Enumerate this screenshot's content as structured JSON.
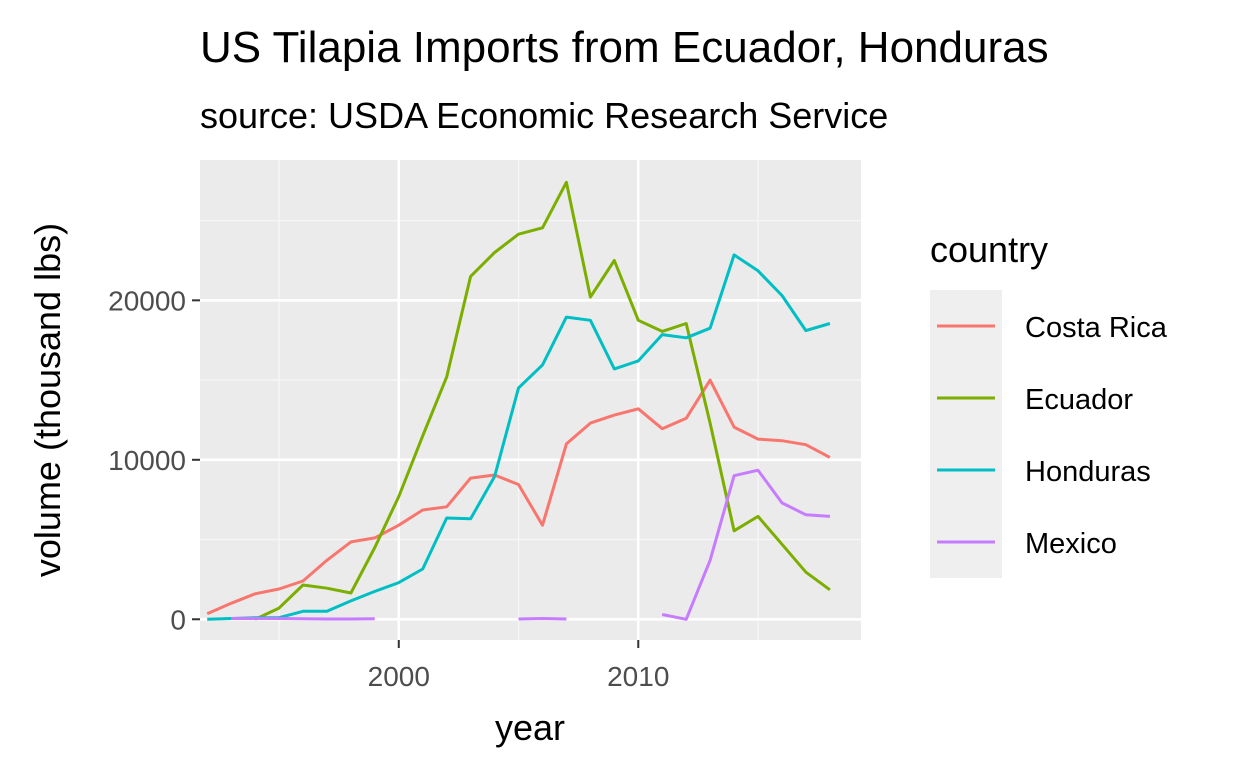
{
  "chart_data": {
    "type": "line",
    "title": "US Tilapia Imports from Ecuador, Honduras",
    "subtitle": "source: USDA Economic Research Service",
    "xlabel": "year",
    "ylabel": "volume (thousand lbs)",
    "xlim": [
      1991.7,
      2019.3
    ],
    "ylim": [
      -1300,
      28800
    ],
    "x_ticks": [
      2000,
      2010
    ],
    "y_ticks": [
      0,
      10000,
      20000
    ],
    "grid": true,
    "legend": {
      "title": "country",
      "position": "right"
    },
    "series": [
      {
        "name": "Costa Rica",
        "color": "#F8766D",
        "points": [
          [
            1992,
            350
          ],
          [
            1993,
            1000
          ],
          [
            1994,
            1600
          ],
          [
            1995,
            1900
          ],
          [
            1996,
            2400
          ],
          [
            1997,
            3700
          ],
          [
            1998,
            4850
          ],
          [
            1999,
            5100
          ],
          [
            2000,
            5900
          ],
          [
            2001,
            6850
          ],
          [
            2002,
            7050
          ],
          [
            2003,
            8850
          ],
          [
            2004,
            9050
          ],
          [
            2005,
            8450
          ],
          [
            2006,
            5900
          ],
          [
            2007,
            11000
          ],
          [
            2008,
            12300
          ],
          [
            2009,
            12800
          ],
          [
            2010,
            13200
          ],
          [
            2011,
            11950
          ],
          [
            2012,
            12600
          ],
          [
            2013,
            15000
          ],
          [
            2014,
            12050
          ],
          [
            2015,
            11300
          ],
          [
            2016,
            11200
          ],
          [
            2017,
            10950
          ],
          [
            2018,
            10150
          ]
        ]
      },
      {
        "name": "Ecuador",
        "color": "#7CAE00",
        "points": [
          [
            1994,
            0
          ],
          [
            1995,
            700
          ],
          [
            1996,
            2150
          ],
          [
            1997,
            1950
          ],
          [
            1998,
            1650
          ],
          [
            1999,
            4500
          ],
          [
            2000,
            7700
          ],
          [
            2001,
            11500
          ],
          [
            2002,
            15200
          ],
          [
            2003,
            21500
          ],
          [
            2004,
            23000
          ],
          [
            2005,
            24150
          ],
          [
            2006,
            24550
          ],
          [
            2007,
            27400
          ],
          [
            2008,
            20200
          ],
          [
            2009,
            22500
          ],
          [
            2010,
            18750
          ],
          [
            2011,
            18050
          ],
          [
            2012,
            18550
          ],
          [
            2013,
            12300
          ],
          [
            2014,
            5550
          ],
          [
            2015,
            6450
          ],
          [
            2016,
            4700
          ],
          [
            2017,
            2950
          ],
          [
            2018,
            1850
          ]
        ]
      },
      {
        "name": "Honduras",
        "color": "#00BFC4",
        "points": [
          [
            1992,
            0
          ],
          [
            1993,
            50
          ],
          [
            1994,
            100
          ],
          [
            1995,
            100
          ],
          [
            1996,
            500
          ],
          [
            1997,
            500
          ],
          [
            1998,
            1150
          ],
          [
            1999,
            1750
          ],
          [
            2000,
            2300
          ],
          [
            2001,
            3150
          ],
          [
            2002,
            6350
          ],
          [
            2003,
            6300
          ],
          [
            2004,
            8950
          ],
          [
            2005,
            14500
          ],
          [
            2006,
            15950
          ],
          [
            2007,
            18950
          ],
          [
            2008,
            18750
          ],
          [
            2009,
            15700
          ],
          [
            2010,
            16200
          ],
          [
            2011,
            17850
          ],
          [
            2012,
            17650
          ],
          [
            2013,
            18250
          ],
          [
            2014,
            22850
          ],
          [
            2015,
            21850
          ],
          [
            2016,
            20300
          ],
          [
            2017,
            18100
          ],
          [
            2018,
            18550
          ]
        ]
      },
      {
        "name": "Mexico",
        "color": "#C77CFF",
        "segments": [
          [
            [
              1993,
              50
            ],
            [
              1994,
              50
            ],
            [
              1995,
              50
            ],
            [
              1996,
              30
            ],
            [
              1997,
              20
            ],
            [
              1998,
              20
            ],
            [
              1999,
              30
            ]
          ],
          [
            [
              2005,
              20
            ],
            [
              2006,
              50
            ],
            [
              2007,
              20
            ]
          ],
          [
            [
              2011,
              300
            ],
            [
              2012,
              0
            ],
            [
              2013,
              3700
            ],
            [
              2014,
              9000
            ],
            [
              2015,
              9350
            ],
            [
              2016,
              7300
            ],
            [
              2017,
              6550
            ],
            [
              2018,
              6450
            ]
          ]
        ]
      }
    ]
  }
}
